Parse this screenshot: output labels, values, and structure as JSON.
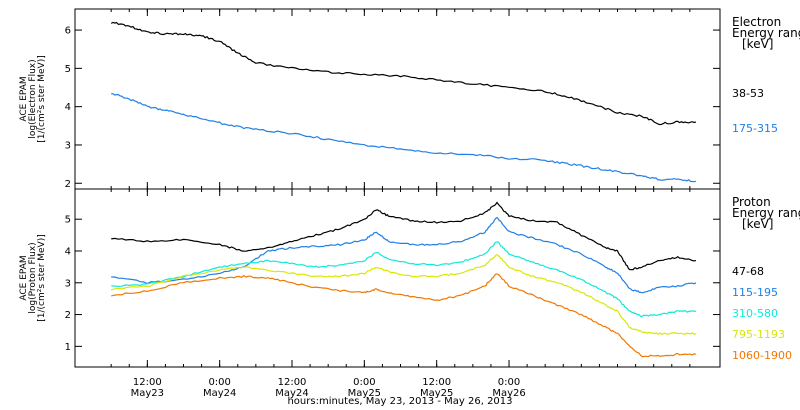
{
  "chart_data": [
    {
      "type": "line",
      "ylabel_lines": [
        "ACE EPAM",
        "log(Electron Flux)",
        "[1/(cm²s ster MeV)]"
      ],
      "yticks": [
        2,
        3,
        4,
        5,
        6
      ],
      "ylim": [
        1.85,
        6.55
      ],
      "legend_title_lines": [
        "Electron",
        "Energy ranges",
        "[keV]"
      ],
      "series": [
        {
          "name": "38-53",
          "color": "#000000",
          "points": [
            [
              0,
              6.2
            ],
            [
              3,
              6.1
            ],
            [
              6,
              5.95
            ],
            [
              9,
              5.9
            ],
            [
              12,
              5.9
            ],
            [
              15,
              5.85
            ],
            [
              18,
              5.7
            ],
            [
              21,
              5.4
            ],
            [
              24,
              5.15
            ],
            [
              30,
              5.0
            ],
            [
              36,
              4.9
            ],
            [
              42,
              4.85
            ],
            [
              48,
              4.8
            ],
            [
              54,
              4.7
            ],
            [
              60,
              4.6
            ],
            [
              66,
              4.5
            ],
            [
              72,
              4.4
            ],
            [
              76,
              4.25
            ],
            [
              80,
              4.05
            ],
            [
              84,
              3.85
            ],
            [
              88,
              3.75
            ],
            [
              91,
              3.55
            ],
            [
              94,
              3.6
            ],
            [
              97,
              3.6
            ]
          ]
        },
        {
          "name": "175-315",
          "color": "#1f7fe8",
          "points": [
            [
              0,
              4.35
            ],
            [
              3,
              4.2
            ],
            [
              6,
              4.0
            ],
            [
              9,
              3.9
            ],
            [
              12,
              3.8
            ],
            [
              16,
              3.65
            ],
            [
              20,
              3.5
            ],
            [
              24,
              3.4
            ],
            [
              30,
              3.3
            ],
            [
              36,
              3.15
            ],
            [
              42,
              3.0
            ],
            [
              48,
              2.9
            ],
            [
              54,
              2.8
            ],
            [
              60,
              2.75
            ],
            [
              66,
              2.65
            ],
            [
              72,
              2.6
            ],
            [
              76,
              2.5
            ],
            [
              80,
              2.4
            ],
            [
              84,
              2.3
            ],
            [
              88,
              2.2
            ],
            [
              91,
              2.1
            ],
            [
              94,
              2.1
            ],
            [
              97,
              2.05
            ]
          ]
        }
      ]
    },
    {
      "type": "line",
      "ylabel_lines": [
        "ACE EPAM",
        "log(Proton Flux)",
        "[1/(cm²s ster MeV)]"
      ],
      "yticks": [
        1,
        2,
        3,
        4,
        5
      ],
      "ylim": [
        0.35,
        5.95
      ],
      "legend_title_lines": [
        "Proton",
        "Energy ranges",
        "[keV]"
      ],
      "series": [
        {
          "name": "47-68",
          "color": "#000000",
          "points": [
            [
              0,
              4.4
            ],
            [
              6,
              4.3
            ],
            [
              12,
              4.35
            ],
            [
              18,
              4.2
            ],
            [
              22,
              4.0
            ],
            [
              26,
              4.1
            ],
            [
              30,
              4.3
            ],
            [
              34,
              4.5
            ],
            [
              38,
              4.7
            ],
            [
              42,
              5.0
            ],
            [
              44,
              5.3
            ],
            [
              46,
              5.1
            ],
            [
              50,
              4.95
            ],
            [
              54,
              4.9
            ],
            [
              58,
              4.95
            ],
            [
              62,
              5.2
            ],
            [
              64,
              5.5
            ],
            [
              66,
              5.1
            ],
            [
              70,
              4.95
            ],
            [
              74,
              4.9
            ],
            [
              78,
              4.5
            ],
            [
              82,
              4.1
            ],
            [
              84,
              4.0
            ],
            [
              86,
              3.4
            ],
            [
              88,
              3.5
            ],
            [
              91,
              3.7
            ],
            [
              94,
              3.8
            ],
            [
              97,
              3.7
            ]
          ]
        },
        {
          "name": "115-195",
          "color": "#1f7fe8",
          "points": [
            [
              0,
              3.2
            ],
            [
              6,
              3.0
            ],
            [
              12,
              3.1
            ],
            [
              18,
              3.3
            ],
            [
              22,
              3.5
            ],
            [
              26,
              4.0
            ],
            [
              30,
              4.1
            ],
            [
              34,
              4.15
            ],
            [
              38,
              4.2
            ],
            [
              42,
              4.35
            ],
            [
              44,
              4.6
            ],
            [
              46,
              4.3
            ],
            [
              50,
              4.2
            ],
            [
              54,
              4.2
            ],
            [
              58,
              4.3
            ],
            [
              62,
              4.6
            ],
            [
              64,
              5.05
            ],
            [
              66,
              4.6
            ],
            [
              70,
              4.4
            ],
            [
              74,
              4.2
            ],
            [
              78,
              3.9
            ],
            [
              82,
              3.5
            ],
            [
              84,
              3.3
            ],
            [
              86,
              2.8
            ],
            [
              88,
              2.7
            ],
            [
              91,
              2.85
            ],
            [
              94,
              2.9
            ],
            [
              97,
              3.0
            ]
          ]
        },
        {
          "name": "310-580",
          "color": "#10e8d8",
          "points": [
            [
              0,
              2.9
            ],
            [
              6,
              2.95
            ],
            [
              12,
              3.2
            ],
            [
              18,
              3.5
            ],
            [
              22,
              3.6
            ],
            [
              26,
              3.7
            ],
            [
              30,
              3.6
            ],
            [
              34,
              3.5
            ],
            [
              38,
              3.55
            ],
            [
              42,
              3.7
            ],
            [
              44,
              3.95
            ],
            [
              46,
              3.75
            ],
            [
              50,
              3.6
            ],
            [
              54,
              3.55
            ],
            [
              58,
              3.65
            ],
            [
              62,
              3.9
            ],
            [
              64,
              4.3
            ],
            [
              66,
              3.9
            ],
            [
              70,
              3.65
            ],
            [
              74,
              3.4
            ],
            [
              78,
              3.1
            ],
            [
              82,
              2.7
            ],
            [
              84,
              2.5
            ],
            [
              86,
              2.1
            ],
            [
              88,
              1.95
            ],
            [
              91,
              2.0
            ],
            [
              94,
              2.1
            ],
            [
              97,
              2.1
            ]
          ]
        },
        {
          "name": "795-1193",
          "color": "#d8e800",
          "points": [
            [
              0,
              2.8
            ],
            [
              6,
              2.9
            ],
            [
              12,
              3.2
            ],
            [
              18,
              3.4
            ],
            [
              22,
              3.5
            ],
            [
              26,
              3.4
            ],
            [
              30,
              3.3
            ],
            [
              34,
              3.2
            ],
            [
              38,
              3.2
            ],
            [
              42,
              3.3
            ],
            [
              44,
              3.5
            ],
            [
              46,
              3.35
            ],
            [
              50,
              3.2
            ],
            [
              54,
              3.2
            ],
            [
              58,
              3.3
            ],
            [
              62,
              3.55
            ],
            [
              64,
              3.9
            ],
            [
              66,
              3.5
            ],
            [
              70,
              3.2
            ],
            [
              74,
              3.0
            ],
            [
              78,
              2.7
            ],
            [
              82,
              2.3
            ],
            [
              84,
              2.1
            ],
            [
              86,
              1.6
            ],
            [
              88,
              1.45
            ],
            [
              91,
              1.4
            ],
            [
              94,
              1.4
            ],
            [
              97,
              1.4
            ]
          ]
        },
        {
          "name": "1060-1900",
          "color": "#f07800",
          "points": [
            [
              0,
              2.6
            ],
            [
              6,
              2.75
            ],
            [
              12,
              3.0
            ],
            [
              18,
              3.15
            ],
            [
              22,
              3.2
            ],
            [
              26,
              3.15
            ],
            [
              30,
              3.0
            ],
            [
              34,
              2.85
            ],
            [
              38,
              2.75
            ],
            [
              42,
              2.7
            ],
            [
              44,
              2.8
            ],
            [
              46,
              2.7
            ],
            [
              50,
              2.55
            ],
            [
              54,
              2.45
            ],
            [
              58,
              2.6
            ],
            [
              62,
              2.9
            ],
            [
              64,
              3.3
            ],
            [
              66,
              2.9
            ],
            [
              70,
              2.6
            ],
            [
              74,
              2.3
            ],
            [
              78,
              2.0
            ],
            [
              82,
              1.6
            ],
            [
              84,
              1.4
            ],
            [
              86,
              1.0
            ],
            [
              88,
              0.7
            ],
            [
              91,
              0.7
            ],
            [
              94,
              0.75
            ],
            [
              97,
              0.75
            ]
          ]
        }
      ]
    }
  ],
  "x_axis": {
    "xlim": [
      -6,
      101
    ],
    "ticks": [
      {
        "x": 6,
        "lines": [
          "12:00",
          "May23"
        ]
      },
      {
        "x": 18,
        "lines": [
          "0:00",
          "May24"
        ]
      },
      {
        "x": 30,
        "lines": [
          "12:00",
          "May24"
        ]
      },
      {
        "x": 42,
        "lines": [
          "0:00",
          "May25"
        ]
      },
      {
        "x": 54,
        "lines": [
          "12:00",
          "May25"
        ]
      },
      {
        "x": 66,
        "lines": [
          "0:00",
          "May26"
        ]
      }
    ],
    "label": "hours:minutes, May 23, 2013 - May 26, 2013"
  }
}
